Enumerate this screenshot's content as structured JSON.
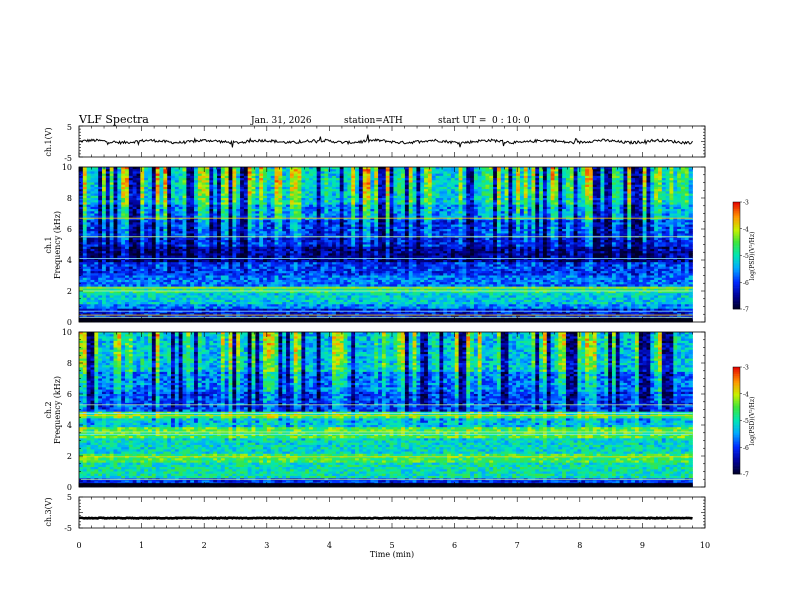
{
  "header": {
    "title": "VLF  Spectra",
    "date": "Jan. 31, 2026",
    "station": "station=ATH",
    "start_label": "start  UT  =",
    "start_value": "0 : 10: 0"
  },
  "chart_data": {
    "type": "heatmap",
    "title": "VLF  Spectra",
    "xlabel": "Time  (min)",
    "x_ticks": [
      "0",
      "1",
      "2",
      "3",
      "4",
      "5",
      "6",
      "7",
      "8",
      "9",
      "10"
    ],
    "xlim": [
      0,
      10
    ],
    "data_end_min": 9.8,
    "panels": [
      {
        "id": "ch1-waveform",
        "type": "line",
        "ylabel": "ch.1(V)",
        "y_ticks": [
          "5",
          "-5"
        ],
        "ylim": [
          -5,
          5
        ],
        "trace_level": 0,
        "color": "#000000"
      },
      {
        "id": "ch1-spectrogram",
        "type": "heatmap",
        "channel_label": "ch.1",
        "ylabel": "Frequency  (kHz)",
        "y_ticks": [
          "0",
          "2",
          "4",
          "6",
          "8",
          "10"
        ],
        "ylim": [
          0,
          10
        ],
        "colorbar": {
          "label": "log(PSD)(V²/Hz)",
          "ticks": [
            "-3",
            "-4",
            "-5",
            "-6",
            "-7"
          ],
          "range": [
            -7,
            -3
          ]
        },
        "bands": [
          {
            "f_lo": 0.0,
            "f_hi": 0.2,
            "level": -7.0
          },
          {
            "f_lo": 0.2,
            "f_hi": 0.8,
            "level": -6.2
          },
          {
            "f_lo": 0.8,
            "f_hi": 1.2,
            "level": -5.6
          },
          {
            "f_lo": 1.2,
            "f_hi": 1.8,
            "level": -5.2
          },
          {
            "f_lo": 1.8,
            "f_hi": 2.3,
            "level": -4.8
          },
          {
            "f_lo": 2.3,
            "f_hi": 3.0,
            "level": -5.7
          },
          {
            "f_lo": 3.0,
            "f_hi": 3.8,
            "level": -6.0
          },
          {
            "f_lo": 3.8,
            "f_hi": 4.8,
            "level": -6.6
          },
          {
            "f_lo": 4.8,
            "f_hi": 5.4,
            "level": -6.2
          },
          {
            "f_lo": 5.4,
            "f_hi": 6.6,
            "level": -6.0
          },
          {
            "f_lo": 6.6,
            "f_hi": 7.6,
            "level": -5.6
          },
          {
            "f_lo": 7.6,
            "f_hi": 10.0,
            "level": -5.2
          }
        ],
        "lines_khz": [
          0.3,
          0.45,
          0.7,
          2.0,
          2.2,
          4.1,
          5.5,
          6.7
        ]
      },
      {
        "id": "ch2-spectrogram",
        "type": "heatmap",
        "channel_label": "ch.2",
        "ylabel": "Frequency  (kHz)",
        "y_ticks": [
          "0",
          "2",
          "4",
          "6",
          "8",
          "10"
        ],
        "ylim": [
          0,
          10
        ],
        "colorbar": {
          "label": "log(PSD)(V²/Hz)",
          "ticks": [
            "-3",
            "-4",
            "-5",
            "-6",
            "-7"
          ],
          "range": [
            -7,
            -3
          ]
        },
        "bands": [
          {
            "f_lo": 0.0,
            "f_hi": 0.6,
            "level": -6.0
          },
          {
            "f_lo": 0.6,
            "f_hi": 1.6,
            "level": -5.0
          },
          {
            "f_lo": 1.6,
            "f_hi": 2.2,
            "level": -4.6
          },
          {
            "f_lo": 2.2,
            "f_hi": 3.2,
            "level": -5.1
          },
          {
            "f_lo": 3.2,
            "f_hi": 3.8,
            "level": -4.5
          },
          {
            "f_lo": 3.8,
            "f_hi": 4.4,
            "level": -5.3
          },
          {
            "f_lo": 4.4,
            "f_hi": 4.9,
            "level": -4.6
          },
          {
            "f_lo": 4.9,
            "f_hi": 6.2,
            "level": -6.0
          },
          {
            "f_lo": 6.2,
            "f_hi": 7.4,
            "level": -5.7
          },
          {
            "f_lo": 7.4,
            "f_hi": 10.0,
            "level": -5.3
          }
        ],
        "lines_khz": [
          0.5,
          1.95,
          3.4,
          3.55,
          4.6,
          4.75,
          5.3
        ]
      },
      {
        "id": "ch3-waveform",
        "type": "line",
        "ylabel": "ch.3(V)",
        "y_ticks": [
          "5",
          "-5"
        ],
        "ylim": [
          -5,
          5
        ],
        "trace_level": -1.8,
        "color": "#000000"
      }
    ]
  }
}
